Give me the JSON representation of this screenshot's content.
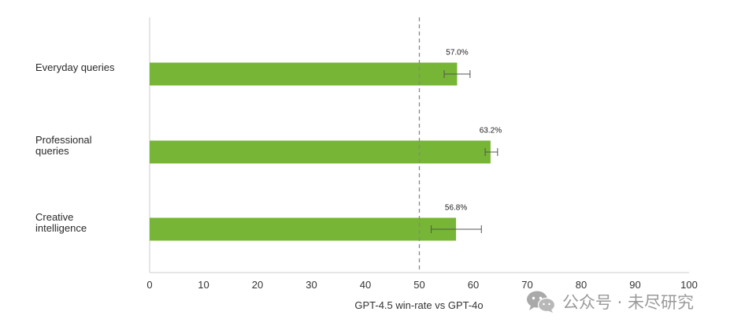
{
  "chart_data": {
    "type": "bar",
    "orientation": "horizontal",
    "categories": [
      "Everyday queries",
      "Professional queries",
      "Creative intelligence"
    ],
    "category_lines": [
      [
        "Everyday queries"
      ],
      [
        "Professional",
        "queries"
      ],
      [
        "Creative",
        "intelligence"
      ]
    ],
    "values": [
      57.0,
      63.2,
      56.8
    ],
    "value_labels": [
      "57.0%",
      "63.2%",
      "56.8%"
    ],
    "error_bars": [
      [
        54.6,
        59.4
      ],
      [
        62.2,
        64.5
      ],
      [
        52.2,
        61.5
      ]
    ],
    "xlim": [
      0,
      100
    ],
    "xticks": [
      0,
      10,
      20,
      30,
      40,
      50,
      60,
      70,
      80,
      90,
      100
    ],
    "reference_line": 50,
    "xlabel": "GPT-4.5 win-rate vs GPT-4o",
    "ylabel": "",
    "title": "",
    "grid": false,
    "colors": {
      "bar": "#76b535",
      "axis": "#cccccc",
      "reference": "#888888",
      "errorbar": "#555555"
    }
  },
  "watermark": {
    "text": "公众号 · 未尽研究",
    "icon": "wechat-icon"
  }
}
